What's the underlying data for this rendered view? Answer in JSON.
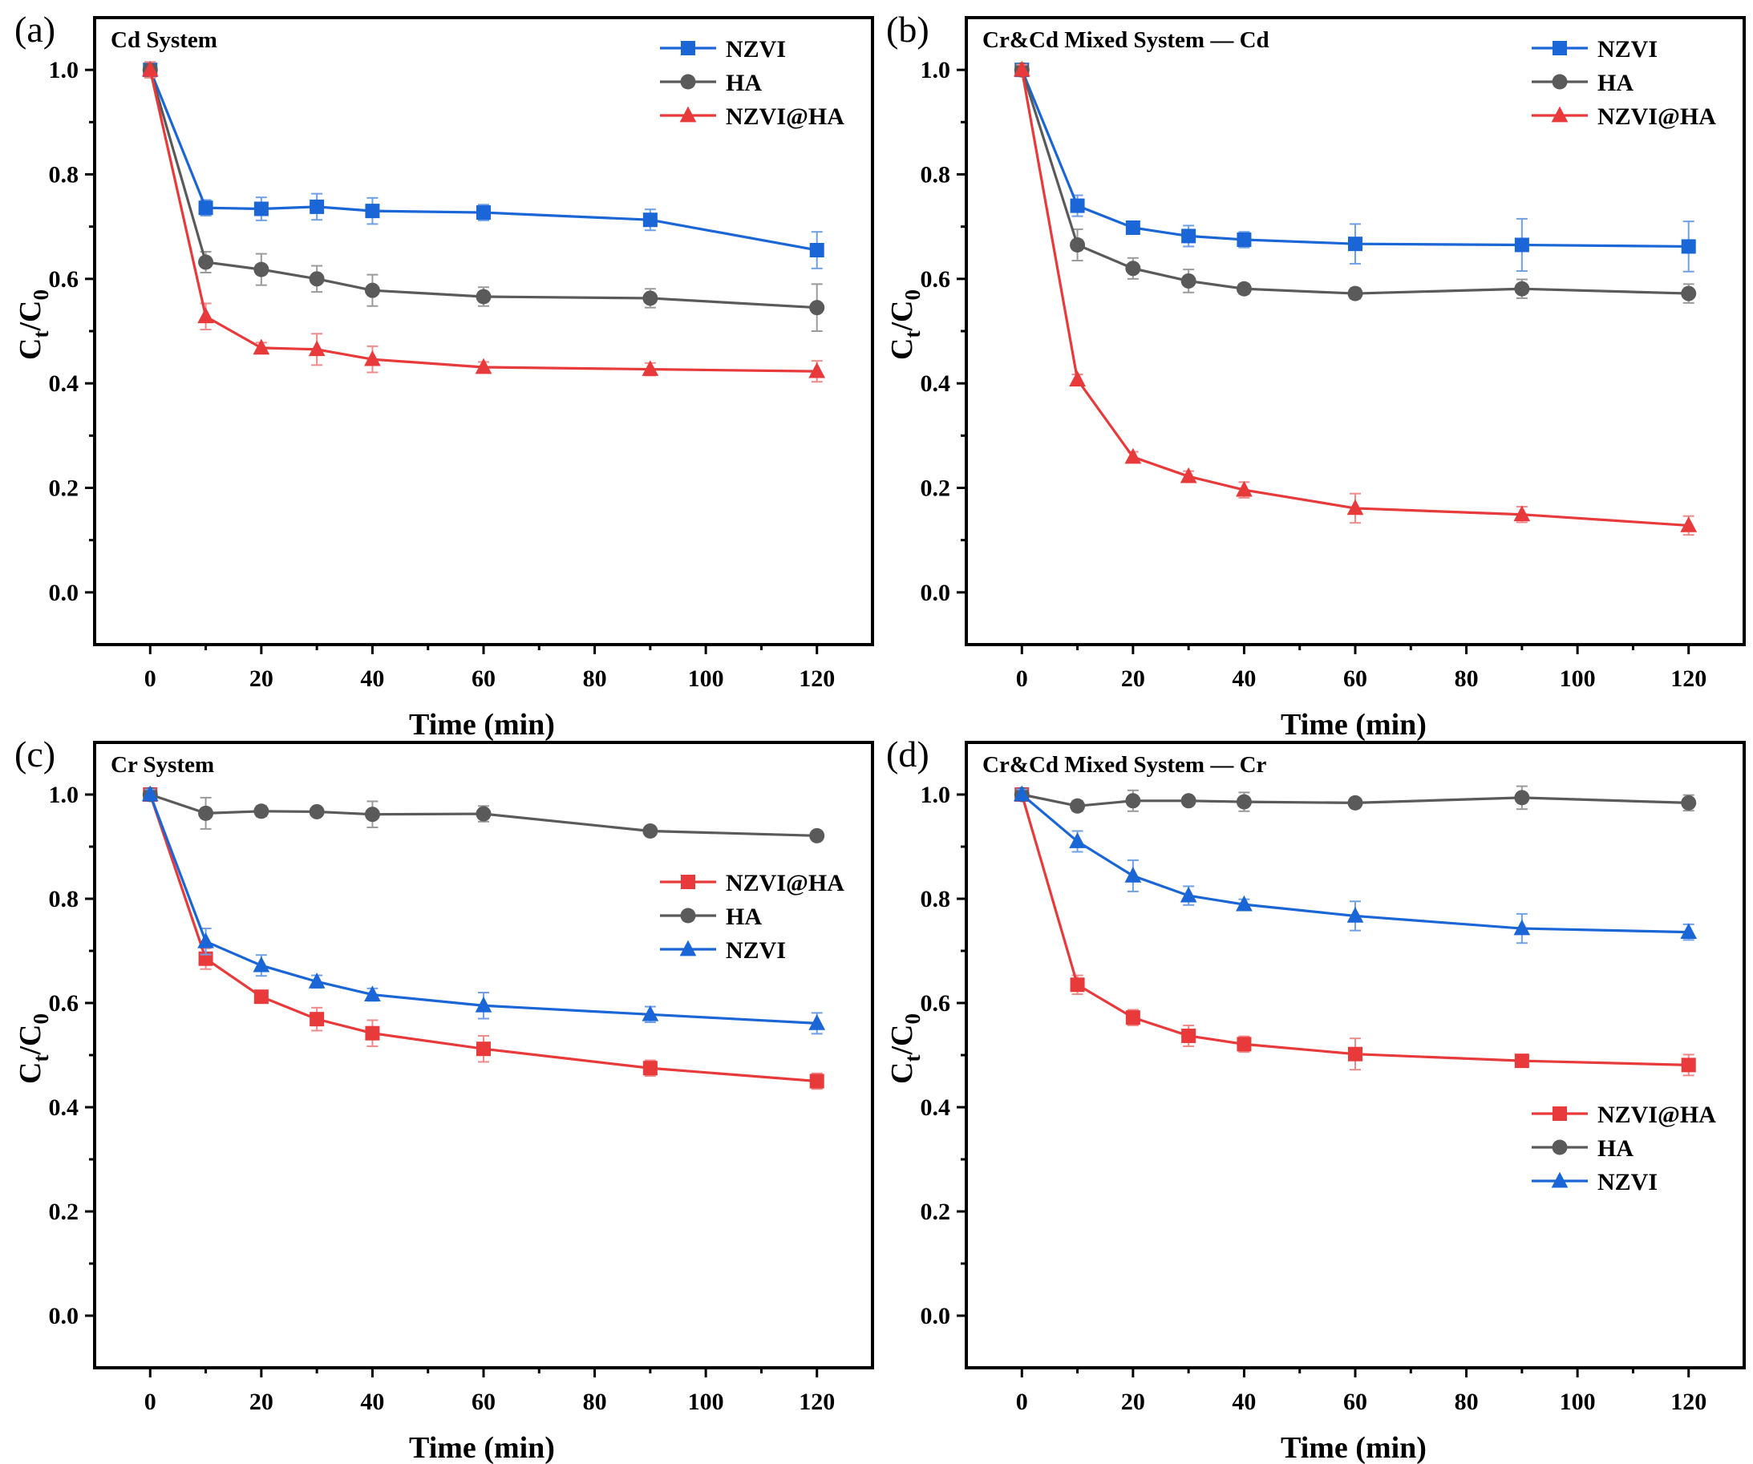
{
  "figure": {
    "panels": [
      {
        "label": "(a)",
        "title": "Cd System",
        "legend_position": "top-right"
      },
      {
        "label": "(b)",
        "title": "Cr&Cd Mixed System — Cd",
        "legend_position": "top-right"
      },
      {
        "label": "(c)",
        "title": "Cr System",
        "legend_position": "middle-right"
      },
      {
        "label": "(d)",
        "title": "Cr&Cd Mixed System — Cr",
        "legend_position": "bottom-right"
      }
    ]
  },
  "colors": {
    "NZVI": "#1a66d6",
    "HA": "#5a5a5a",
    "NZVI@HA": "#e8393b",
    "error_NZVI": "#6fa0e6",
    "error_HA": "#9a9a9a",
    "error_NZVI@HA": "#f08a8a"
  },
  "chart_data": [
    {
      "type": "line",
      "title": "Cd System",
      "xlabel": "Time (min)",
      "ylabel": "Ct/C0",
      "ylabel_main": "C",
      "ylabel_sub1": "t",
      "ylabel_sep": "/C",
      "ylabel_sub2": "0",
      "xlim": [
        -10,
        130
      ],
      "ylim": [
        -0.1,
        1.1
      ],
      "xticks": [
        0,
        20,
        40,
        60,
        80,
        100,
        120
      ],
      "yticks": [
        0.0,
        0.2,
        0.4,
        0.6,
        0.8,
        1.0
      ],
      "xtick_labels": [
        "0",
        "20",
        "40",
        "60",
        "80",
        "100",
        "120"
      ],
      "ytick_labels": [
        "0.0",
        "0.2",
        "0.4",
        "0.6",
        "0.8",
        "1.0"
      ],
      "x": [
        0,
        10,
        20,
        30,
        40,
        60,
        90,
        120
      ],
      "series": [
        {
          "name": "NZVI",
          "marker": "square",
          "values": [
            1.0,
            0.736,
            0.734,
            0.738,
            0.73,
            0.727,
            0.713,
            0.655
          ],
          "errors": [
            0.015,
            0.015,
            0.022,
            0.025,
            0.025,
            0.015,
            0.02,
            0.035
          ]
        },
        {
          "name": "HA",
          "marker": "circle",
          "values": [
            1.0,
            0.632,
            0.618,
            0.6,
            0.578,
            0.566,
            0.563,
            0.545
          ],
          "errors": [
            0.015,
            0.02,
            0.03,
            0.025,
            0.03,
            0.018,
            0.018,
            0.045
          ]
        },
        {
          "name": "NZVI@HA",
          "marker": "triangle",
          "values": [
            1.0,
            0.528,
            0.468,
            0.465,
            0.446,
            0.431,
            0.427,
            0.423
          ],
          "errors": [
            0.015,
            0.025,
            0.01,
            0.03,
            0.025,
            0.01,
            0.012,
            0.02
          ]
        }
      ]
    },
    {
      "type": "line",
      "title": "Cr&Cd Mixed System — Cd",
      "xlabel": "Time (min)",
      "ylabel": "Ct/C0",
      "ylabel_main": "C",
      "ylabel_sub1": "t",
      "ylabel_sep": "/C",
      "ylabel_sub2": "0",
      "xlim": [
        -10,
        130
      ],
      "ylim": [
        -0.1,
        1.1
      ],
      "xticks": [
        0,
        20,
        40,
        60,
        80,
        100,
        120
      ],
      "yticks": [
        0.0,
        0.2,
        0.4,
        0.6,
        0.8,
        1.0
      ],
      "xtick_labels": [
        "0",
        "20",
        "40",
        "60",
        "80",
        "100",
        "120"
      ],
      "ytick_labels": [
        "0.0",
        "0.2",
        "0.4",
        "0.6",
        "0.8",
        "1.0"
      ],
      "x": [
        0,
        10,
        20,
        30,
        40,
        60,
        90,
        120
      ],
      "series": [
        {
          "name": "NZVI",
          "marker": "square",
          "values": [
            1.0,
            0.74,
            0.698,
            0.682,
            0.675,
            0.667,
            0.665,
            0.662
          ],
          "errors": [
            0.01,
            0.02,
            0.01,
            0.02,
            0.015,
            0.038,
            0.05,
            0.048
          ]
        },
        {
          "name": "HA",
          "marker": "circle",
          "values": [
            1.0,
            0.665,
            0.62,
            0.596,
            0.581,
            0.572,
            0.581,
            0.572
          ],
          "errors": [
            0.01,
            0.03,
            0.02,
            0.022,
            0.01,
            0.01,
            0.018,
            0.018
          ]
        },
        {
          "name": "NZVI@HA",
          "marker": "triangle",
          "values": [
            1.0,
            0.407,
            0.259,
            0.222,
            0.196,
            0.161,
            0.149,
            0.128
          ],
          "errors": [
            0.01,
            0.01,
            0.01,
            0.01,
            0.015,
            0.028,
            0.015,
            0.018
          ]
        }
      ]
    },
    {
      "type": "line",
      "title": "Cr System",
      "xlabel": "Time (min)",
      "ylabel": "Ct/C0",
      "ylabel_main": "C",
      "ylabel_sub1": "t",
      "ylabel_sep": "/C",
      "ylabel_sub2": "0",
      "xlim": [
        -10,
        130
      ],
      "ylim": [
        -0.1,
        1.1
      ],
      "xticks": [
        0,
        20,
        40,
        60,
        80,
        100,
        120
      ],
      "yticks": [
        0.0,
        0.2,
        0.4,
        0.6,
        0.8,
        1.0
      ],
      "xtick_labels": [
        "0",
        "20",
        "40",
        "60",
        "80",
        "100",
        "120"
      ],
      "ytick_labels": [
        "0.0",
        "0.2",
        "0.4",
        "0.6",
        "0.8",
        "1.0"
      ],
      "x": [
        0,
        10,
        20,
        30,
        40,
        60,
        90,
        120
      ],
      "series": [
        {
          "name": "NZVI@HA",
          "marker": "square",
          "values": [
            1.0,
            0.685,
            0.612,
            0.569,
            0.542,
            0.512,
            0.475,
            0.45
          ],
          "errors": [
            0.01,
            0.02,
            0.01,
            0.022,
            0.025,
            0.025,
            0.015,
            0.015
          ]
        },
        {
          "name": "HA",
          "marker": "circle",
          "values": [
            1.0,
            0.964,
            0.968,
            0.967,
            0.962,
            0.963,
            0.93,
            0.921
          ],
          "errors": [
            0.01,
            0.03,
            0.01,
            0.008,
            0.025,
            0.015,
            0.008,
            0.008
          ]
        },
        {
          "name": "NZVI",
          "marker": "triangle",
          "values": [
            1.0,
            0.718,
            0.672,
            0.641,
            0.616,
            0.595,
            0.578,
            0.561
          ],
          "errors": [
            0.01,
            0.025,
            0.02,
            0.012,
            0.012,
            0.025,
            0.015,
            0.02
          ]
        }
      ]
    },
    {
      "type": "line",
      "title": "Cr&Cd Mixed System — Cr",
      "xlabel": "Time (min)",
      "ylabel": "Ct/C0",
      "ylabel_main": "C",
      "ylabel_sub1": "t",
      "ylabel_sep": "/C",
      "ylabel_sub2": "0",
      "xlim": [
        -10,
        130
      ],
      "ylim": [
        -0.1,
        1.1
      ],
      "xticks": [
        0,
        20,
        40,
        60,
        80,
        100,
        120
      ],
      "yticks": [
        0.0,
        0.2,
        0.4,
        0.6,
        0.8,
        1.0
      ],
      "xtick_labels": [
        "0",
        "20",
        "40",
        "60",
        "80",
        "100",
        "120"
      ],
      "ytick_labels": [
        "0.0",
        "0.2",
        "0.4",
        "0.6",
        "0.8",
        "1.0"
      ],
      "x": [
        0,
        10,
        20,
        30,
        40,
        60,
        90,
        120
      ],
      "series": [
        {
          "name": "NZVI@HA",
          "marker": "square",
          "values": [
            1.0,
            0.635,
            0.572,
            0.537,
            0.521,
            0.502,
            0.489,
            0.481
          ],
          "errors": [
            0.01,
            0.018,
            0.015,
            0.02,
            0.015,
            0.03,
            0.008,
            0.02
          ]
        },
        {
          "name": "HA",
          "marker": "circle",
          "values": [
            1.0,
            0.978,
            0.988,
            0.988,
            0.986,
            0.984,
            0.994,
            0.984
          ],
          "errors": [
            0.01,
            0.01,
            0.02,
            0.008,
            0.018,
            0.008,
            0.022,
            0.015
          ]
        },
        {
          "name": "NZVI",
          "marker": "triangle",
          "values": [
            1.0,
            0.91,
            0.844,
            0.806,
            0.789,
            0.767,
            0.743,
            0.736
          ],
          "errors": [
            0.01,
            0.02,
            0.03,
            0.018,
            0.01,
            0.028,
            0.028,
            0.015
          ]
        }
      ]
    }
  ]
}
